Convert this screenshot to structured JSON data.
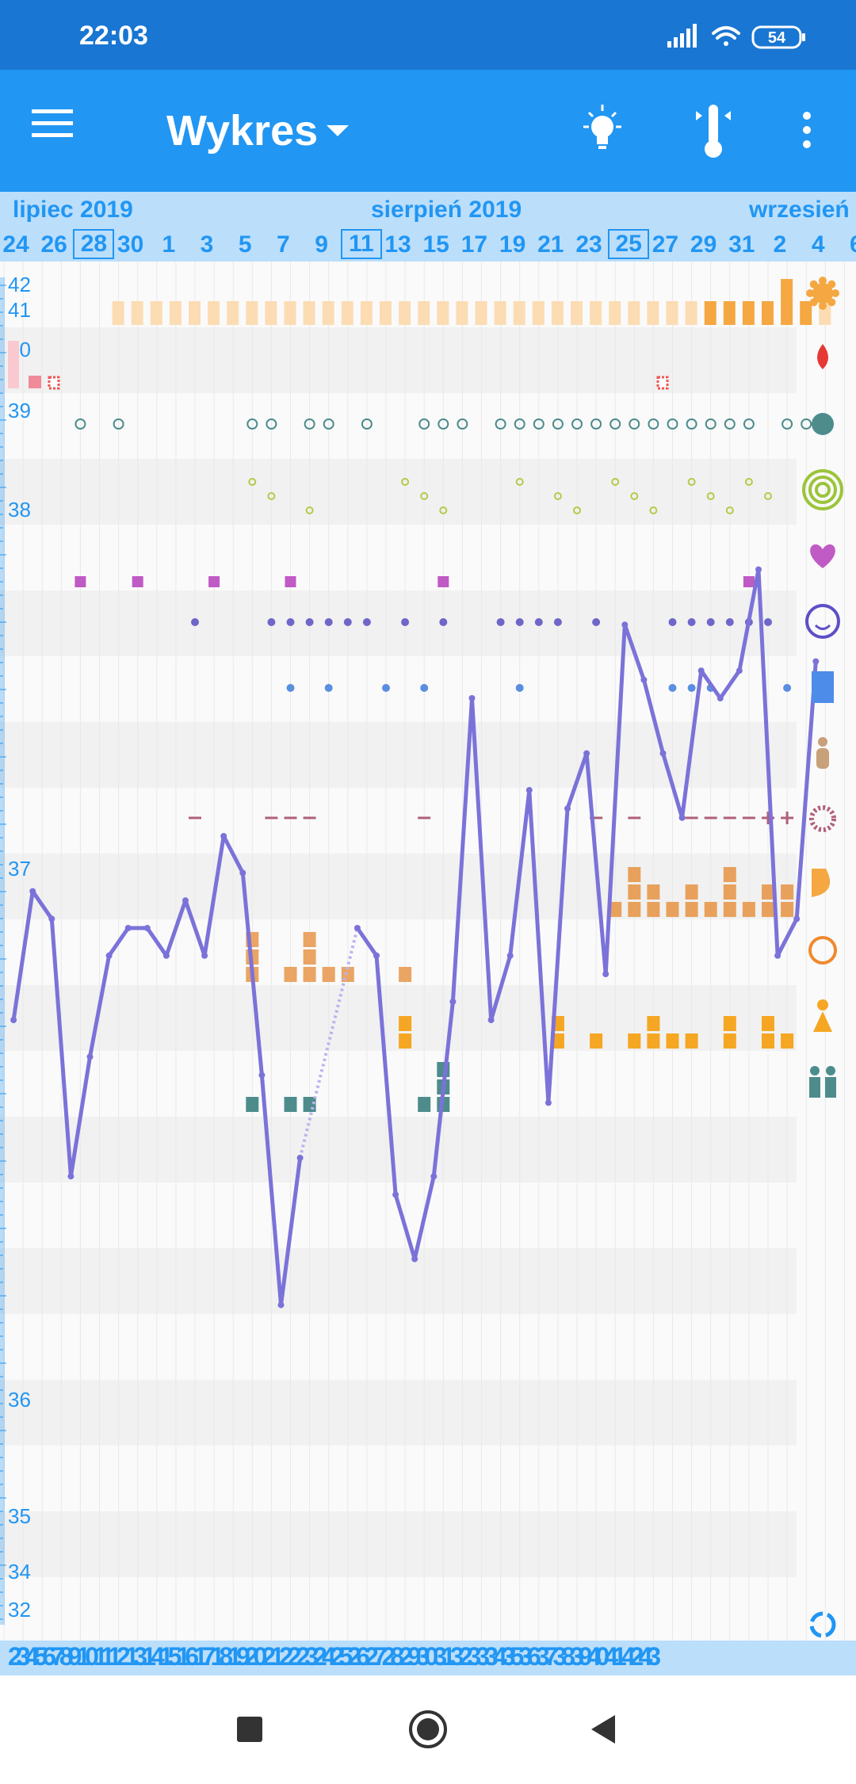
{
  "status_bar": {
    "time": "22:03",
    "battery": "54",
    "icons": [
      "signal-icon",
      "wifi-icon",
      "battery-icon"
    ]
  },
  "app_bar": {
    "title": "Wykres",
    "icons": [
      "menu-icon",
      "dropdown-icon",
      "tip-bulb-icon",
      "thermometer-icon",
      "more-vert-icon"
    ]
  },
  "months": [
    "lipiec 2019",
    "sierpień 2019",
    "wrzesień"
  ],
  "dates": [
    {
      "label": "24"
    },
    {
      "label": "26"
    },
    {
      "label": "28",
      "boxed": true
    },
    {
      "label": "30"
    },
    {
      "label": "1"
    },
    {
      "label": "3"
    },
    {
      "label": "5"
    },
    {
      "label": "7"
    },
    {
      "label": "9"
    },
    {
      "label": "11",
      "boxed": true
    },
    {
      "label": "13"
    },
    {
      "label": "15"
    },
    {
      "label": "17"
    },
    {
      "label": "19"
    },
    {
      "label": "21"
    },
    {
      "label": "23"
    },
    {
      "label": "25",
      "boxed": true
    },
    {
      "label": "27"
    },
    {
      "label": "29"
    },
    {
      "label": "31"
    },
    {
      "label": "2"
    },
    {
      "label": "4"
    },
    {
      "label": "6"
    }
  ],
  "y_axis_labels": [
    "42",
    "41",
    "40",
    "39",
    "38",
    "37",
    "36",
    "35",
    "34",
    "32"
  ],
  "bottom_cycle_numbers": "2345678910111213141516171819202122232425262728293031323334353637383940414243",
  "right_icons": [
    "flower-icon",
    "blood-drop-icon",
    "mucus-splash-icon",
    "cervix-rings-icon",
    "heart-icon",
    "smiley-icon",
    "document-icon",
    "pregnancy-test-icon",
    "ovulation-test-icon",
    "breast-icon",
    "cramps-icon",
    "person-icon",
    "couple-icon",
    "cycle-refresh-icon"
  ],
  "nav_bar": {
    "icons": [
      "recents-icon",
      "home-icon",
      "back-icon"
    ]
  },
  "colors": {
    "status_bar": "#1976d2",
    "app_bar": "#2196f3",
    "date_bar": "#bbdefb",
    "accent_text": "#2196f3",
    "temperature_line": "#7b72d9",
    "period_light": "#fcdcb3",
    "period_heavy": "#f5a742",
    "intercourse": "#c05ac4",
    "mood": "#6f66c9",
    "notes": "#5a8ee0",
    "bar_orange": "#e8a15c",
    "teal": "#4e8c8c",
    "mucus_green": "#b8c84a"
  },
  "chart_data": {
    "type": "line",
    "y_ticks": [
      42,
      41,
      40,
      39,
      38,
      37,
      36,
      35,
      34,
      32
    ],
    "day_columns": 43,
    "temperature_line": [
      {
        "day": 1,
        "y": 36.7
      },
      {
        "day": 2,
        "y": 36.84
      },
      {
        "day": 3,
        "y": 36.81
      },
      {
        "day": 4,
        "y": 36.53
      },
      {
        "day": 5,
        "y": 36.66
      },
      {
        "day": 6,
        "y": 36.77
      },
      {
        "day": 7,
        "y": 36.8
      },
      {
        "day": 8,
        "y": 36.8
      },
      {
        "day": 9,
        "y": 36.77
      },
      {
        "day": 10,
        "y": 36.83
      },
      {
        "day": 11,
        "y": 36.77
      },
      {
        "day": 12,
        "y": 36.9
      },
      {
        "day": 13,
        "y": 36.86
      },
      {
        "day": 14,
        "y": 36.64
      },
      {
        "day": 15,
        "y": 36.39
      },
      {
        "day": 16,
        "y": 36.55
      },
      {
        "day": 19,
        "y": 36.8
      },
      {
        "day": 20,
        "y": 36.77
      },
      {
        "day": 21,
        "y": 36.51
      },
      {
        "day": 22,
        "y": 36.44
      },
      {
        "day": 23,
        "y": 36.53
      },
      {
        "day": 24,
        "y": 36.72
      },
      {
        "day": 25,
        "y": 37.05
      },
      {
        "day": 26,
        "y": 36.7
      },
      {
        "day": 27,
        "y": 36.77
      },
      {
        "day": 28,
        "y": 36.95
      },
      {
        "day": 29,
        "y": 36.61
      },
      {
        "day": 30,
        "y": 36.93
      },
      {
        "day": 31,
        "y": 36.99
      },
      {
        "day": 32,
        "y": 36.75
      },
      {
        "day": 33,
        "y": 37.13
      },
      {
        "day": 34,
        "y": 37.07
      },
      {
        "day": 35,
        "y": 36.99
      },
      {
        "day": 36,
        "y": 36.92
      },
      {
        "day": 37,
        "y": 37.08
      },
      {
        "day": 38,
        "y": 37.05
      },
      {
        "day": 39,
        "y": 37.08
      },
      {
        "day": 40,
        "y": 37.19
      },
      {
        "day": 41,
        "y": 36.77
      },
      {
        "day": 42,
        "y": 36.81
      },
      {
        "day": 43,
        "y": 37.09
      }
    ],
    "period": {
      "days": [
        6,
        7,
        8,
        9,
        10,
        11,
        12,
        13,
        14,
        15,
        16,
        17,
        18,
        19,
        20,
        21,
        22,
        23,
        24,
        25,
        26,
        27,
        28,
        29,
        30,
        31,
        32,
        33,
        34,
        35,
        36,
        37,
        38,
        39,
        40,
        41,
        42,
        43
      ],
      "heavy_days": [
        37,
        38,
        39,
        40,
        41,
        42
      ]
    },
    "intercourse_days": [
      4,
      7,
      11,
      15,
      23,
      39
    ],
    "mood_days": [
      10,
      14,
      15,
      16,
      17,
      18,
      19,
      21,
      23,
      26,
      27,
      28,
      29,
      31,
      35,
      36,
      37,
      38,
      39,
      40
    ],
    "notes_days": [
      15,
      17,
      20,
      22,
      27,
      35,
      36,
      37,
      41
    ],
    "minus_days": [
      10,
      14,
      15,
      16,
      22,
      31,
      33,
      36,
      37,
      38,
      39
    ],
    "plus_days": [
      40,
      41
    ],
    "orange_stacks": [
      {
        "day": 13,
        "n": 3
      },
      {
        "day": 15,
        "n": 1
      },
      {
        "day": 16,
        "n": 3
      },
      {
        "day": 17,
        "n": 1
      },
      {
        "day": 18,
        "n": 1
      },
      {
        "day": 21,
        "n": 1
      },
      {
        "day": 32,
        "n": 1
      },
      {
        "day": 33,
        "n": 3
      },
      {
        "day": 34,
        "n": 2
      },
      {
        "day": 35,
        "n": 1
      },
      {
        "day": 36,
        "n": 2
      },
      {
        "day": 37,
        "n": 1
      },
      {
        "day": 38,
        "n": 3
      },
      {
        "day": 39,
        "n": 1
      },
      {
        "day": 40,
        "n": 2
      },
      {
        "day": 41,
        "n": 2
      }
    ],
    "teal_stacks": [
      {
        "day": 13,
        "n": 1
      },
      {
        "day": 15,
        "n": 1
      },
      {
        "day": 16,
        "n": 1
      },
      {
        "day": 22,
        "n": 1
      },
      {
        "day": 23,
        "n": 3
      }
    ]
  }
}
